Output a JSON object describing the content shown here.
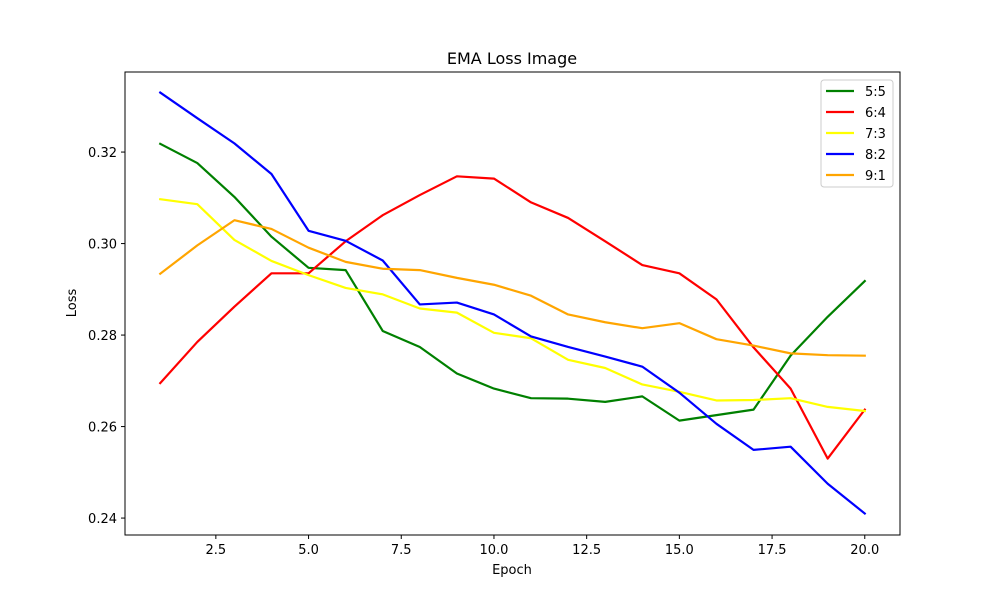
{
  "chart_data": {
    "type": "line",
    "title": "EMA Loss Image",
    "xlabel": "Epoch",
    "ylabel": "Loss",
    "xlim": [
      0.05,
      20.95
    ],
    "ylim": [
      0.2363,
      0.3375
    ],
    "xticks": [
      2.5,
      5.0,
      7.5,
      10.0,
      12.5,
      15.0,
      17.5,
      20.0
    ],
    "xtick_labels": [
      "2.5",
      "5.0",
      "7.5",
      "10.0",
      "12.5",
      "15.0",
      "17.5",
      "20.0"
    ],
    "yticks": [
      0.24,
      0.26,
      0.28,
      0.3,
      0.32
    ],
    "ytick_labels": [
      "0.24",
      "0.26",
      "0.28",
      "0.30",
      "0.32"
    ],
    "grid": false,
    "legend_position": "top-right",
    "x": [
      1,
      2,
      3,
      4,
      5,
      6,
      7,
      8,
      9,
      10,
      11,
      12,
      13,
      14,
      15,
      16,
      17,
      18,
      19,
      20
    ],
    "series": [
      {
        "name": "5:5",
        "color": "#008000",
        "values": [
          0.3218,
          0.3176,
          0.3102,
          0.3015,
          0.2947,
          0.2942,
          0.2809,
          0.2774,
          0.2716,
          0.2683,
          0.2662,
          0.2661,
          0.2654,
          0.2666,
          0.2613,
          0.2625,
          0.2637,
          0.2755,
          0.284,
          0.2918
        ]
      },
      {
        "name": "6:4",
        "color": "#ff0000",
        "values": [
          0.2695,
          0.2785,
          0.2862,
          0.2935,
          0.2935,
          0.3005,
          0.3062,
          0.3106,
          0.3147,
          0.3142,
          0.309,
          0.3056,
          0.3005,
          0.2953,
          0.2935,
          0.2878,
          0.2773,
          0.2683,
          0.253,
          0.2637
        ]
      },
      {
        "name": "7:3",
        "color": "#ffff00",
        "values": [
          0.3097,
          0.3086,
          0.3008,
          0.2962,
          0.2931,
          0.2903,
          0.2889,
          0.2858,
          0.2849,
          0.2805,
          0.2793,
          0.2746,
          0.2728,
          0.2692,
          0.2676,
          0.2657,
          0.2658,
          0.2662,
          0.2643,
          0.2634
        ]
      },
      {
        "name": "8:2",
        "color": "#0000ff",
        "values": [
          0.333,
          0.3274,
          0.3219,
          0.3152,
          0.3028,
          0.3006,
          0.2963,
          0.2867,
          0.2871,
          0.2845,
          0.2797,
          0.2774,
          0.2753,
          0.2731,
          0.2674,
          0.2606,
          0.2549,
          0.2556,
          0.2475,
          0.241
        ]
      },
      {
        "name": "9:1",
        "color": "#ffa500",
        "values": [
          0.2934,
          0.2996,
          0.3051,
          0.3032,
          0.2991,
          0.296,
          0.2945,
          0.2942,
          0.2925,
          0.291,
          0.2886,
          0.2845,
          0.2828,
          0.2815,
          0.2826,
          0.2791,
          0.2777,
          0.276,
          0.2756,
          0.2755
        ]
      }
    ]
  }
}
